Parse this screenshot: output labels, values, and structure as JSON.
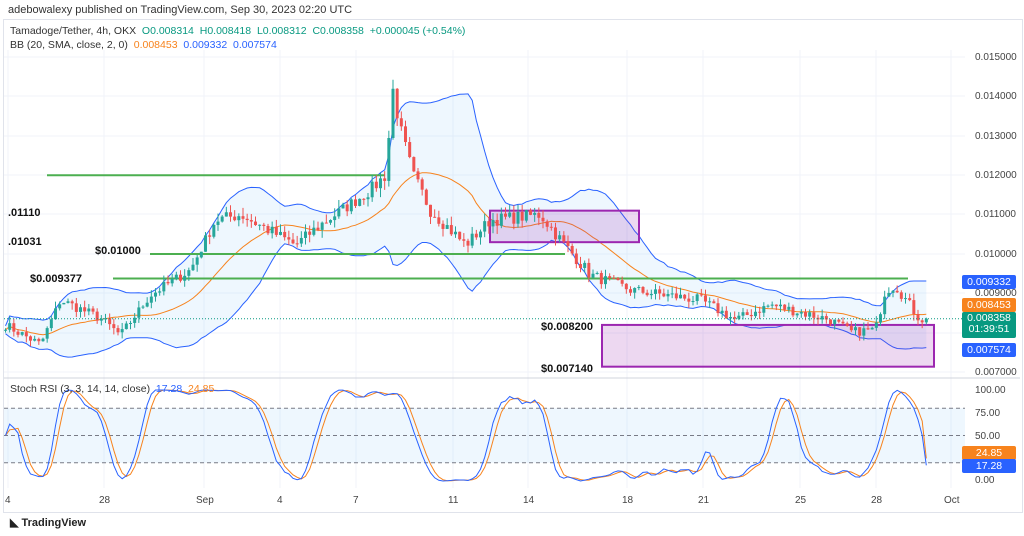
{
  "publisher": "adebowalexy published on TradingView.com, Sep 30, 2023 02:20 UTC",
  "legend": {
    "symbol": "Tamadoge/Tether, 4h, OKX",
    "o": "O0.008314",
    "h": "H0.008418",
    "l": "L0.008312",
    "c": "C0.008358",
    "chg": "+0.000045 (+0.54%)",
    "bb": "BB (20, SMA, close, 2, 0)",
    "bb_mid": "0.008453",
    "bb_up": "0.009332",
    "bb_lo": "0.007574"
  },
  "stoch": {
    "label": "Stoch RSI (3, 3, 14, 14, close)",
    "k": "17.28",
    "d": "24.85"
  },
  "price_axis": [
    "0.015000",
    "0.014000",
    "0.013000",
    "0.012000",
    "0.011000",
    "0.010000",
    "0.009000",
    "0.007000"
  ],
  "price_tags": {
    "upper": "0.009332",
    "mid": "0.008453",
    "last": "0.008358",
    "countdown": "01:39:51",
    "lower": "0.007574"
  },
  "rsi_axis": [
    "100.00",
    "75.00",
    "50.00",
    "0.00"
  ],
  "rsi_tags": {
    "d": "24.85",
    "k": "17.28"
  },
  "time_axis": [
    "4",
    "28",
    "Sep",
    "4",
    "7",
    "11",
    "14",
    "18",
    "21",
    "25",
    "28",
    "Oct"
  ],
  "annotations": {
    "a1": ".01110",
    "a2": ".01031",
    "a3": "$0.01000",
    "a4": "$0.009377",
    "a5": "$0.008200",
    "a6": "$0.007140"
  },
  "levels": [
    0.012,
    0.01,
    0.009377
  ],
  "zones": [
    [
      0.0103,
      0.0111
    ],
    [
      0.00714,
      0.0082
    ]
  ],
  "footer": "TradingView",
  "chart_data": {
    "type": "candlestick",
    "pair": "Tamadoge/Tether",
    "interval": "4h",
    "keypoints_days_price": [
      [
        -0.1,
        0.0082
      ],
      [
        1.3,
        0.0077
      ],
      [
        2.1,
        0.00883
      ],
      [
        3.7,
        0.00837
      ],
      [
        4.5,
        0.00794
      ],
      [
        5.7,
        0.00896
      ],
      [
        7.3,
        0.0096
      ],
      [
        8.3,
        0.01086
      ],
      [
        9.3,
        0.011
      ],
      [
        11.5,
        0.01023
      ],
      [
        12.5,
        0.01074
      ],
      [
        14.5,
        0.01162
      ],
      [
        15.1,
        0.012
      ],
      [
        15.4,
        0.01416
      ],
      [
        15.7,
        0.01315
      ],
      [
        16.2,
        0.012
      ],
      [
        16.9,
        0.01112
      ],
      [
        18.3,
        0.01023
      ],
      [
        19.3,
        0.01086
      ],
      [
        21.3,
        0.011
      ],
      [
        22.1,
        0.01036
      ],
      [
        23.3,
        0.00947
      ],
      [
        24.9,
        0.00909
      ],
      [
        27.7,
        0.00883
      ],
      [
        29.1,
        0.00833
      ],
      [
        30.5,
        0.00871
      ],
      [
        32.9,
        0.00833
      ],
      [
        33.7,
        0.00802
      ],
      [
        34.7,
        0.00808
      ],
      [
        35.1,
        0.00909
      ],
      [
        35.5,
        0.0092
      ],
      [
        36.5,
        0.00833
      ],
      [
        36.7,
        0.008358
      ]
    ]
  }
}
